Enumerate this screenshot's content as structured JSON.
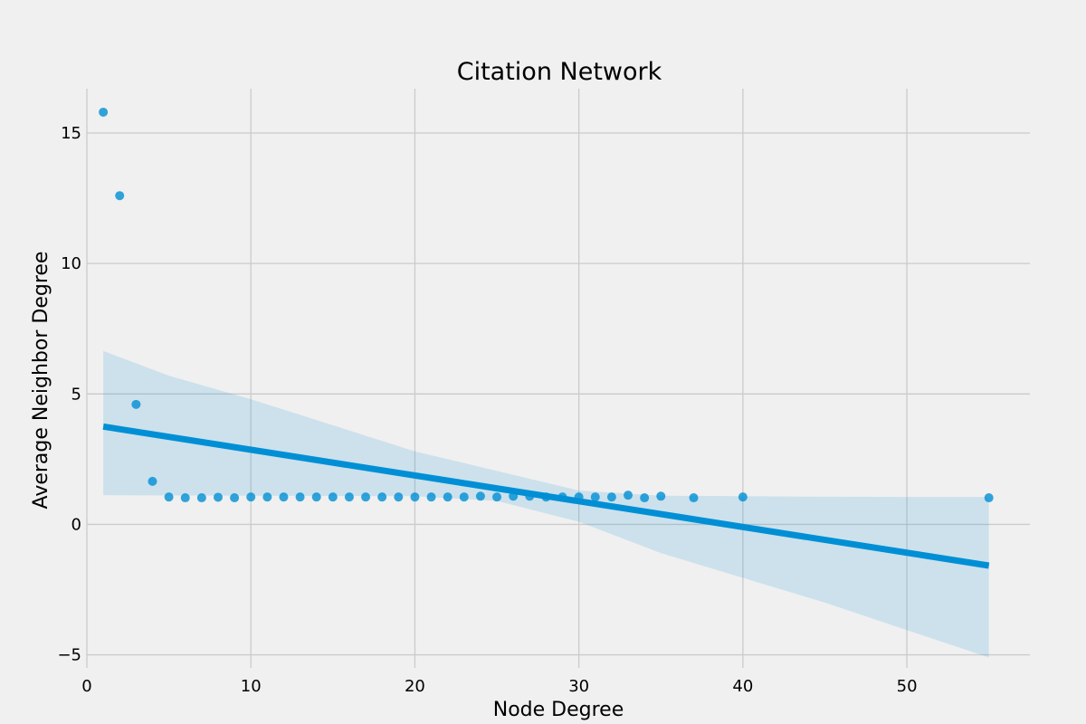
{
  "chart_data": {
    "type": "scatter",
    "title": "Citation Network",
    "xlabel": "Node Degree",
    "ylabel": "Average Neighbor Degree",
    "xlim": [
      0,
      57.5
    ],
    "ylim": [
      -5.5,
      16.7
    ],
    "xticks": [
      0,
      10,
      20,
      30,
      40,
      50
    ],
    "yticks": [
      -5,
      0,
      5,
      10,
      15
    ],
    "grid": true,
    "colors": {
      "points": "#008fd5",
      "background": "#f0f0f0",
      "grid": "#cbcbcb"
    },
    "x": [
      1,
      2,
      3,
      4,
      5,
      6,
      7,
      8,
      9,
      10,
      11,
      12,
      13,
      14,
      15,
      16,
      17,
      18,
      19,
      20,
      21,
      22,
      23,
      24,
      25,
      26,
      27,
      28,
      29,
      30,
      31,
      32,
      33,
      34,
      35,
      37,
      40,
      55
    ],
    "y": [
      15.8,
      12.6,
      4.6,
      1.65,
      1.05,
      1.02,
      1.02,
      1.04,
      1.02,
      1.05,
      1.05,
      1.05,
      1.05,
      1.05,
      1.05,
      1.05,
      1.05,
      1.05,
      1.05,
      1.05,
      1.05,
      1.05,
      1.05,
      1.08,
      1.05,
      1.08,
      1.08,
      1.05,
      1.05,
      1.05,
      1.05,
      1.05,
      1.12,
      1.02,
      1.08,
      1.02,
      1.05,
      1.02
    ],
    "regression": {
      "x": [
        1,
        55
      ],
      "y": [
        3.75,
        -1.58
      ],
      "ci_x": [
        1,
        5,
        10,
        15,
        20,
        25,
        30,
        35,
        40,
        45,
        50,
        55
      ],
      "ci_upper": [
        6.65,
        5.7,
        4.8,
        3.8,
        2.8,
        2.05,
        1.3,
        1.1,
        1.08,
        1.06,
        1.05,
        1.05
      ],
      "ci_lower": [
        1.12,
        1.11,
        1.1,
        1.09,
        1.08,
        0.9,
        0.1,
        -1.1,
        -2.05,
        -3.0,
        -4.05,
        -5.1
      ]
    }
  }
}
